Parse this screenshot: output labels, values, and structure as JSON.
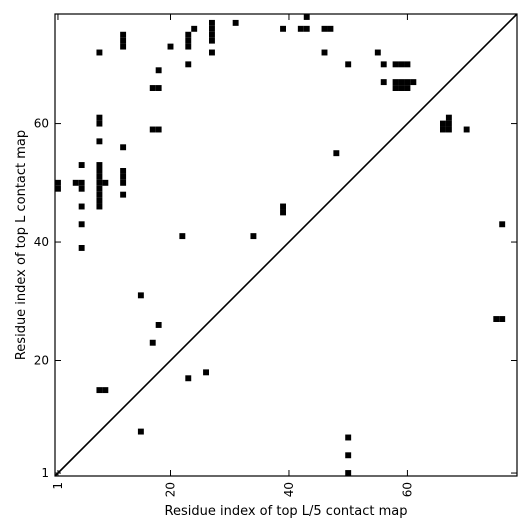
{
  "chart_data": {
    "type": "heatmap",
    "title": "",
    "xlabel": "Residue index of top L/5 contact map",
    "ylabel": "Residue index of top L contact map",
    "xlim": [
      0.5,
      78.5
    ],
    "ylim": [
      0.5,
      78.5
    ],
    "x_ticks": [
      {
        "value": 1,
        "label": "1"
      },
      {
        "value": 20,
        "label": "20"
      },
      {
        "value": 40,
        "label": "40"
      },
      {
        "value": 60,
        "label": "60"
      }
    ],
    "y_ticks": [
      {
        "value": 1,
        "label": "1"
      },
      {
        "value": 20,
        "label": "20"
      },
      {
        "value": 40,
        "label": "40"
      },
      {
        "value": 60,
        "label": "60"
      }
    ],
    "x_tick_rotation": -90,
    "diagonal": true,
    "grid": false,
    "cell_color": "#000000",
    "background": "#ffffff",
    "contacts_upper": [
      [
        1,
        49
      ],
      [
        1,
        50
      ],
      [
        4,
        50
      ],
      [
        5,
        49
      ],
      [
        5,
        50
      ],
      [
        5,
        53
      ],
      [
        5,
        46
      ],
      [
        5,
        43
      ],
      [
        5,
        39
      ],
      [
        8,
        72
      ],
      [
        8,
        61
      ],
      [
        8,
        60
      ],
      [
        8,
        57
      ],
      [
        8,
        53
      ],
      [
        8,
        52
      ],
      [
        8,
        51
      ],
      [
        8,
        50
      ],
      [
        8,
        49
      ],
      [
        8,
        48
      ],
      [
        8,
        47
      ],
      [
        8,
        46
      ],
      [
        9,
        50
      ],
      [
        12,
        75
      ],
      [
        12,
        74
      ],
      [
        12,
        73
      ],
      [
        12,
        56
      ],
      [
        12,
        52
      ],
      [
        12,
        51
      ],
      [
        12,
        50
      ],
      [
        12,
        48
      ],
      [
        17,
        66
      ],
      [
        18,
        66
      ],
      [
        17,
        59
      ],
      [
        18,
        59
      ],
      [
        18,
        69
      ],
      [
        20,
        73
      ],
      [
        22,
        41
      ],
      [
        23,
        75
      ],
      [
        23,
        74
      ],
      [
        23,
        73
      ],
      [
        23,
        70
      ],
      [
        24,
        76
      ],
      [
        27,
        77
      ],
      [
        27,
        76
      ],
      [
        27,
        75
      ],
      [
        27,
        74
      ],
      [
        27,
        72
      ],
      [
        31,
        77
      ],
      [
        34,
        41
      ],
      [
        39,
        76
      ],
      [
        39,
        46
      ],
      [
        39,
        45
      ],
      [
        42,
        76
      ],
      [
        43,
        76
      ],
      [
        43,
        78
      ],
      [
        46,
        76
      ],
      [
        47,
        76
      ],
      [
        46,
        72
      ],
      [
        48,
        55
      ],
      [
        50,
        70
      ],
      [
        55,
        72
      ],
      [
        56,
        70
      ],
      [
        56,
        67
      ],
      [
        58,
        70
      ],
      [
        59,
        70
      ],
      [
        60,
        70
      ],
      [
        58,
        67
      ],
      [
        59,
        67
      ],
      [
        60,
        67
      ],
      [
        61,
        67
      ],
      [
        58,
        66
      ],
      [
        59,
        66
      ],
      [
        60,
        66
      ],
      [
        66,
        60
      ],
      [
        67,
        60
      ],
      [
        66,
        59
      ],
      [
        67,
        59
      ],
      [
        67,
        61
      ],
      [
        70,
        59
      ],
      [
        76,
        43
      ]
    ],
    "contacts_lower": [
      [
        8,
        15
      ],
      [
        9,
        15
      ],
      [
        15,
        8
      ],
      [
        17,
        23
      ],
      [
        18,
        26
      ],
      [
        15,
        31
      ],
      [
        23,
        17
      ],
      [
        26,
        18
      ],
      [
        50,
        7
      ],
      [
        50,
        4
      ],
      [
        50,
        1
      ],
      [
        75,
        27
      ],
      [
        76,
        27
      ]
    ]
  }
}
